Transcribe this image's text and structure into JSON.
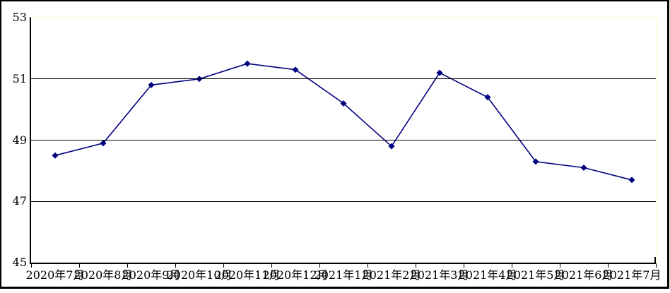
{
  "chart_data": {
    "type": "line",
    "title": "",
    "xlabel": "",
    "ylabel": "",
    "categories": [
      "2020年7月",
      "2020年8月",
      "2020年9月",
      "2020年10月",
      "2020年11月",
      "2020年12月",
      "2021年1月",
      "2021年2月",
      "2021年3月",
      "2021年4月",
      "2021年5月",
      "2021年6月",
      "2021年7月"
    ],
    "values": [
      48.5,
      48.9,
      50.8,
      51.0,
      51.5,
      51.3,
      50.2,
      48.8,
      51.2,
      50.4,
      48.3,
      48.1,
      47.7
    ],
    "ylim": [
      45,
      53
    ],
    "y_ticks": [
      45,
      47,
      49,
      51,
      53
    ],
    "gridline_values": [
      47,
      49,
      51
    ],
    "grid": "horizontal-only",
    "legend": "none",
    "marker": "diamond",
    "colors": {
      "line": "#000080",
      "marker": "#000080",
      "gridline": "#000000",
      "axis": "#000000",
      "plot_border": "#ffffbb",
      "outer_border": "#000000",
      "background": "#ffffff",
      "text": "#000000"
    }
  }
}
